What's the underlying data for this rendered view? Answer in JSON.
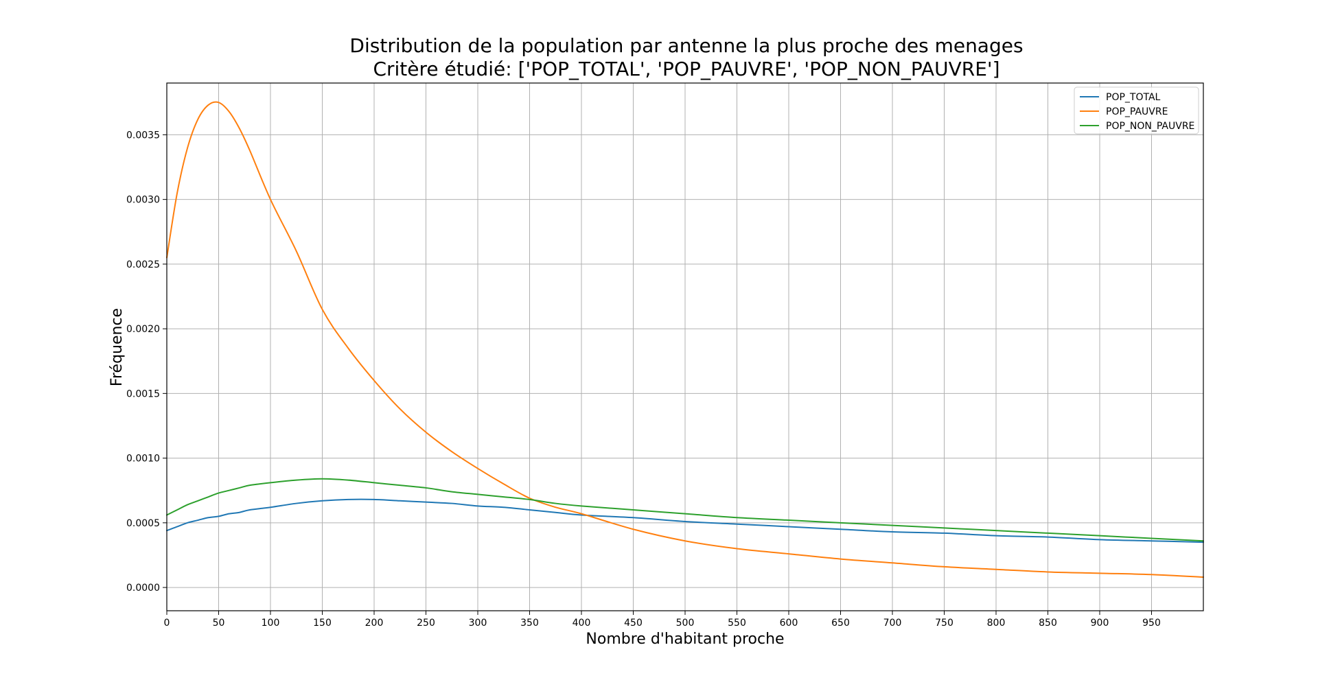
{
  "chart_data": {
    "type": "line",
    "title_line1": "Distribution de la population par antenne la plus proche des menages",
    "title_line2": "Critère étudié: ['POP_TOTAL', 'POP_PAUVRE', 'POP_NON_PAUVRE']",
    "xlabel": "Nombre d'habitant proche",
    "ylabel": "Fréquence",
    "xlim": [
      0,
      1000
    ],
    "ylim": [
      -0.00018,
      0.0039
    ],
    "grid": true,
    "legend_position": "top-right",
    "x_ticks": [
      0,
      50,
      100,
      150,
      200,
      250,
      300,
      350,
      400,
      450,
      500,
      550,
      600,
      650,
      700,
      750,
      800,
      850,
      900,
      950
    ],
    "y_ticks": [
      0.0,
      0.0005,
      0.001,
      0.0015,
      0.002,
      0.0025,
      0.003,
      0.0035
    ],
    "y_tick_labels": [
      "0.0000",
      "0.0005",
      "0.0010",
      "0.0015",
      "0.0020",
      "0.0025",
      "0.0030",
      "0.0035"
    ],
    "x": [
      0,
      10,
      20,
      30,
      40,
      50,
      60,
      70,
      80,
      100,
      125,
      150,
      175,
      200,
      225,
      250,
      275,
      300,
      325,
      350,
      375,
      400,
      450,
      500,
      550,
      600,
      650,
      700,
      750,
      800,
      850,
      900,
      950,
      1000
    ],
    "series": [
      {
        "name": "POP_TOTAL",
        "color": "#1f77b4",
        "values": [
          0.00044,
          0.00047,
          0.0005,
          0.00052,
          0.00054,
          0.00055,
          0.00057,
          0.00058,
          0.0006,
          0.00062,
          0.00065,
          0.00067,
          0.00068,
          0.00068,
          0.00067,
          0.00066,
          0.00065,
          0.00063,
          0.00062,
          0.0006,
          0.00058,
          0.00056,
          0.00054,
          0.00051,
          0.00049,
          0.00047,
          0.00045,
          0.00043,
          0.00042,
          0.0004,
          0.00039,
          0.00037,
          0.00036,
          0.00035
        ]
      },
      {
        "name": "POP_PAUVRE",
        "color": "#ff7f0e",
        "values": [
          0.00255,
          0.00305,
          0.0034,
          0.00362,
          0.00373,
          0.00375,
          0.00368,
          0.00355,
          0.00338,
          0.003,
          0.0026,
          0.00215,
          0.00185,
          0.0016,
          0.00138,
          0.0012,
          0.00105,
          0.00092,
          0.0008,
          0.00069,
          0.00062,
          0.00057,
          0.00045,
          0.00036,
          0.0003,
          0.00026,
          0.00022,
          0.00019,
          0.00016,
          0.00014,
          0.00012,
          0.00011,
          0.0001,
          8e-05
        ]
      },
      {
        "name": "POP_NON_PAUVRE",
        "color": "#2ca02c",
        "values": [
          0.00056,
          0.0006,
          0.00064,
          0.00067,
          0.0007,
          0.00073,
          0.00075,
          0.00077,
          0.00079,
          0.00081,
          0.00083,
          0.00084,
          0.00083,
          0.00081,
          0.00079,
          0.00077,
          0.00074,
          0.00072,
          0.0007,
          0.00068,
          0.00065,
          0.00063,
          0.0006,
          0.00057,
          0.00054,
          0.00052,
          0.0005,
          0.00048,
          0.00046,
          0.00044,
          0.00042,
          0.0004,
          0.00038,
          0.00036
        ]
      }
    ]
  }
}
